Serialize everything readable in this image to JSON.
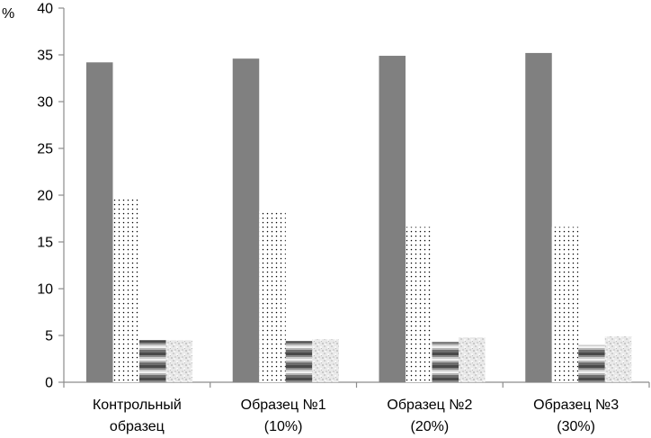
{
  "chart_data": {
    "type": "bar",
    "ylabel": "%",
    "ylim": [
      0,
      40
    ],
    "yticks": [
      "0",
      "5",
      "10",
      "15",
      "20",
      "25",
      "30",
      "35",
      "40"
    ],
    "grid": false,
    "legend": "none",
    "categories": [
      [
        "Контрольный",
        "образец"
      ],
      [
        "Образец №1",
        "(10%)"
      ],
      [
        "Образец №2",
        "(20%)"
      ],
      [
        "Образец №3",
        "(30%)"
      ]
    ],
    "series": [
      {
        "values": [
          34.2,
          34.6,
          34.9,
          35.2
        ],
        "fill": "solid-gray"
      },
      {
        "values": [
          19.8,
          18.3,
          16.6,
          16.6
        ],
        "fill": "dots"
      },
      {
        "values": [
          4.5,
          4.4,
          4.3,
          4.0
        ],
        "fill": "horizontal-gradient-bands"
      },
      {
        "values": [
          4.5,
          4.6,
          4.8,
          4.9
        ],
        "fill": "light-mottled"
      }
    ],
    "colors": {
      "solid": "#808080",
      "axis": "#8c8c8c",
      "dots": "#000000"
    }
  }
}
